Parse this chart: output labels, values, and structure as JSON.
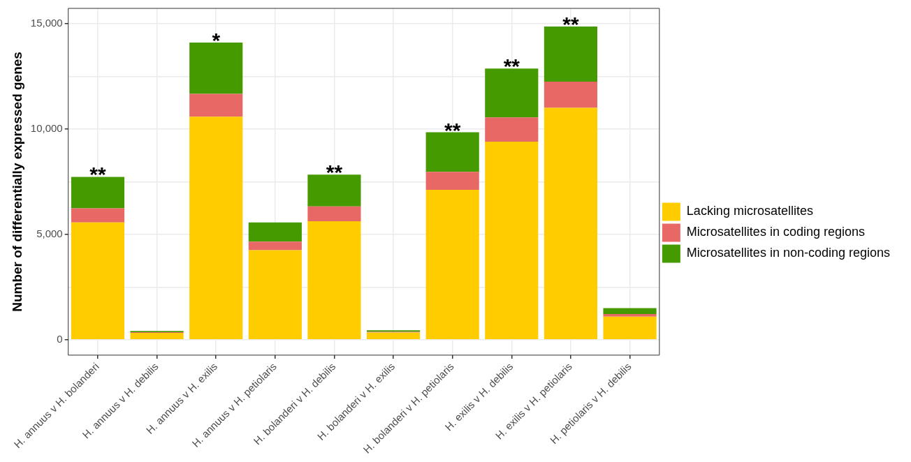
{
  "chart_data": {
    "type": "bar",
    "stacked": true,
    "ylabel": "Number of differentially expressed genes",
    "categories": [
      "H. annuus v H. bolanderi",
      "H. annuus v H. debilis",
      "H. annuus v H. exilis",
      "H. annuus v H. petiolaris",
      "H. bolanderi v H. debilis",
      "H. bolanderi v H. exilis",
      "H. bolanderi v H. petiolaris",
      "H. exilis v H. debilis",
      "H. exilis v H. petiolaris",
      "H. petiolaris v H. debilis"
    ],
    "series": [
      {
        "name": "Lacking microsatellites",
        "color": "#ffcc00",
        "values": [
          5570,
          330,
          10590,
          4250,
          5630,
          340,
          7120,
          9400,
          11010,
          1100
        ]
      },
      {
        "name": "Microsatellites in coding regions",
        "color": "#e86865",
        "values": [
          670,
          30,
          1080,
          410,
          700,
          40,
          850,
          1150,
          1240,
          120
        ]
      },
      {
        "name": "Microsatellites in non-coding regions",
        "color": "#459a00",
        "values": [
          1490,
          60,
          2440,
          910,
          1510,
          70,
          1880,
          2320,
          2620,
          280
        ]
      }
    ],
    "ylim": [
      -730,
      15730
    ],
    "yticks": [
      {
        "value": 0,
        "label": "0"
      },
      {
        "value": 2500,
        "label": null
      },
      {
        "value": 5000,
        "label": "5,000"
      },
      {
        "value": 7500,
        "label": null
      },
      {
        "value": 10000,
        "label": "10,000"
      },
      {
        "value": 12500,
        "label": null
      },
      {
        "value": 15000,
        "label": "15,000"
      }
    ],
    "grid": true,
    "legend": "right",
    "annotations": [
      {
        "text": "**",
        "x": "H. annuus v H. bolanderi",
        "y": 7730
      },
      {
        "text": "*",
        "x": "H. annuus v H. exilis",
        "y": 14110
      },
      {
        "text": "**",
        "x": "H. bolanderi v H. debilis",
        "y": 7840
      },
      {
        "text": "**",
        "x": "H. bolanderi v H. petiolaris",
        "y": 9850
      },
      {
        "text": "**",
        "x": "H. exilis v H. debilis",
        "y": 12870
      },
      {
        "text": "**",
        "x": "H. exilis v H. petiolaris",
        "y": 14870
      }
    ]
  }
}
